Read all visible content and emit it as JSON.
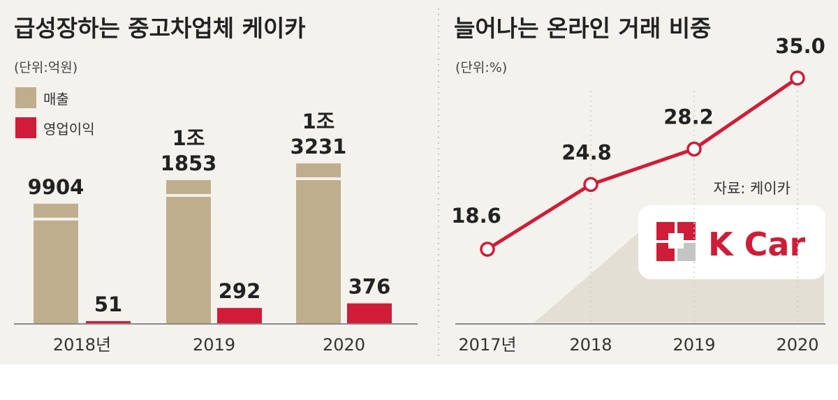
{
  "chart_data": [
    {
      "type": "bar",
      "title": "급성장하는 중고차업체 케이카",
      "unit_label": "(단위:억원)",
      "categories": [
        "2018년",
        "2019",
        "2020"
      ],
      "series": [
        {
          "name": "매출",
          "color": "#bfae8e",
          "values": [
            9904,
            11853,
            13231
          ],
          "labels": [
            [
              "9904"
            ],
            [
              "1조",
              "1853"
            ],
            [
              "1조",
              "3231"
            ]
          ]
        },
        {
          "name": "영업이익",
          "color": "#d01c38",
          "values": [
            51,
            292,
            376
          ],
          "labels": [
            [
              "51"
            ],
            [
              "292"
            ],
            [
              "376"
            ]
          ]
        }
      ]
    },
    {
      "type": "line",
      "title": "늘어나는 온라인 거래 비중",
      "unit_label": "(단위:%)",
      "categories": [
        "2017년",
        "2018",
        "2019",
        "2020"
      ],
      "series": [
        {
          "name": "",
          "color": "#d01c38",
          "values": [
            18.6,
            24.8,
            28.2,
            35.0
          ],
          "labels": [
            "18.6",
            "24.8",
            "28.2",
            "35.0"
          ]
        }
      ],
      "source": "자료: 케이카",
      "logo_text": "K Car"
    }
  ]
}
